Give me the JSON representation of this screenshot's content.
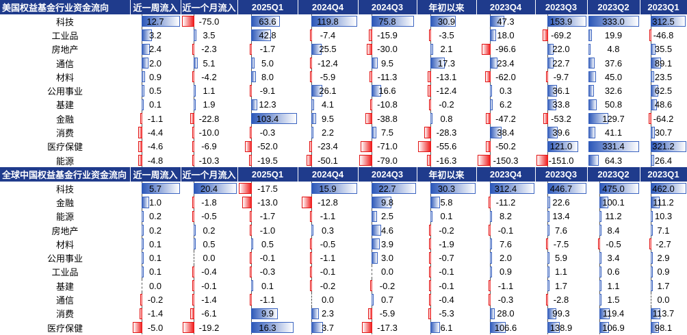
{
  "tables": [
    {
      "columns": [
        "美国权益基金行业资金流向",
        "近一周流入",
        "近一个月流入",
        "2025Q1",
        "2024Q4",
        "2024Q3",
        "年初以来",
        "2023Q4",
        "2023Q3",
        "2023Q2",
        "2023Q1"
      ],
      "rows": [
        {
          "label": "科技",
          "values": [
            12.7,
            -75.0,
            63.6,
            119.8,
            75.8,
            30.9,
            47.3,
            153.9,
            333.0,
            312.5
          ]
        },
        {
          "label": "工业品",
          "values": [
            3.2,
            3.5,
            42.8,
            -7.4,
            -15.9,
            -3.5,
            18.0,
            -69.2,
            19.9,
            -46.8
          ]
        },
        {
          "label": "房地产",
          "values": [
            2.4,
            -2.3,
            -1.7,
            25.5,
            -30.0,
            2.1,
            -96.6,
            22.0,
            4.8,
            35.5
          ]
        },
        {
          "label": "通信",
          "values": [
            2.0,
            5.1,
            5.0,
            -12.4,
            9.5,
            17.3,
            23.4,
            22.7,
            37.6,
            89.1
          ]
        },
        {
          "label": "材料",
          "values": [
            0.9,
            -4.2,
            8.0,
            -5.9,
            -11.3,
            -13.1,
            -62.0,
            -9.7,
            45.0,
            23.5
          ]
        },
        {
          "label": "公用事业",
          "values": [
            0.5,
            1.1,
            -9.1,
            26.1,
            16.6,
            -12.4,
            0.3,
            36.1,
            32.6,
            62.5
          ]
        },
        {
          "label": "基建",
          "values": [
            0.1,
            1.9,
            12.3,
            4.1,
            -10.8,
            -0.2,
            6.2,
            33.8,
            50.8,
            48.6
          ]
        },
        {
          "label": "金融",
          "values": [
            -1.1,
            -22.8,
            103.4,
            9.5,
            -38.8,
            0.8,
            -47.2,
            -53.2,
            129.7,
            -64.2
          ]
        },
        {
          "label": "消费",
          "values": [
            -4.4,
            -10.0,
            -0.3,
            2.2,
            7.5,
            -28.3,
            38.4,
            39.6,
            41.1,
            30.7
          ]
        },
        {
          "label": "医疗保健",
          "values": [
            -4.6,
            -6.9,
            -52.0,
            -23.4,
            -71.0,
            -55.6,
            -50.2,
            121.0,
            331.4,
            321.2
          ]
        },
        {
          "label": "能源",
          "values": [
            -4.8,
            -10.3,
            -19.5,
            -50.1,
            -79.0,
            -16.3,
            -150.3,
            -151.0,
            64.3,
            26.4
          ]
        }
      ]
    },
    {
      "columns": [
        "全球中国权益基金行业资金流向",
        "近一周流入",
        "近一个月流入",
        "2025Q1",
        "2024Q4",
        "2024Q3",
        "年初以来",
        "2023Q4",
        "2023Q3",
        "2023Q2",
        "2023Q1"
      ],
      "rows": [
        {
          "label": "科技",
          "values": [
            5.7,
            20.4,
            -17.5,
            15.9,
            22.7,
            30.3,
            312.4,
            446.7,
            475.0,
            462.0
          ]
        },
        {
          "label": "金融",
          "values": [
            1.0,
            -1.8,
            -13.0,
            -12.8,
            9.8,
            5.8,
            -11.2,
            22.6,
            100.1,
            111.2
          ]
        },
        {
          "label": "能源",
          "values": [
            0.2,
            -0.5,
            -1.7,
            -1.1,
            2.5,
            0.1,
            8.2,
            13.4,
            11.2,
            10.3
          ]
        },
        {
          "label": "房地产",
          "values": [
            0.2,
            0.2,
            -1.0,
            0.3,
            4.6,
            -0.2,
            -0.1,
            7.6,
            8.4,
            7.1
          ]
        },
        {
          "label": "材料",
          "values": [
            0.1,
            0.5,
            0.5,
            -0.5,
            3.9,
            -1.9,
            7.6,
            -7.5,
            -0.5,
            -2.7
          ]
        },
        {
          "label": "公用事业",
          "values": [
            0.1,
            0.0,
            -0.1,
            -1.1,
            3.0,
            -0.7,
            2.0,
            5.9,
            3.4,
            2.9
          ]
        },
        {
          "label": "工业品",
          "values": [
            0.1,
            -0.4,
            -0.3,
            -0.1,
            0.0,
            -0.1,
            0.9,
            1.1,
            0.6,
            0.9
          ]
        },
        {
          "label": "基建",
          "values": [
            0.0,
            -0.1,
            0.1,
            -0.2,
            -0.2,
            -0.1,
            -1.1,
            1.7,
            1.1,
            1.7
          ]
        },
        {
          "label": "通信",
          "values": [
            -0.2,
            -1.4,
            -1.1,
            0.0,
            0.7,
            -0.4,
            -0.3,
            -2.8,
            1.5,
            0.0
          ]
        },
        {
          "label": "消费",
          "values": [
            -1.4,
            -6.1,
            9.9,
            2.3,
            -5.9,
            -5.3,
            28.0,
            99.3,
            119.4,
            113.7
          ]
        },
        {
          "label": "医疗保健",
          "values": [
            -5.0,
            -19.2,
            16.3,
            3.7,
            -17.3,
            6.1,
            106.6,
            138.9,
            106.9,
            98.1
          ]
        }
      ]
    }
  ],
  "colors": {
    "header_bg": "#1f3b8c",
    "header_text": "#ffffff",
    "positive_bar": "#2a56b8",
    "negative_bar": "#ee1111"
  }
}
